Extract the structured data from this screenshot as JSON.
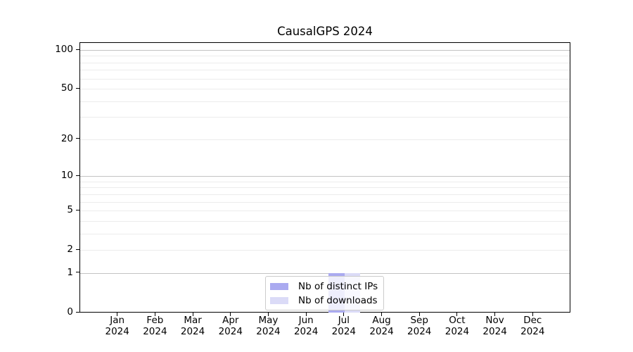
{
  "chart_data": {
    "type": "bar",
    "title": "CausalGPS 2024",
    "x": {
      "months": [
        "Jan",
        "Feb",
        "Mar",
        "Apr",
        "May",
        "Jun",
        "Jul",
        "Aug",
        "Sep",
        "Oct",
        "Nov",
        "Dec"
      ],
      "year_label": "2024"
    },
    "categories": [
      "Jan 2024",
      "Feb 2024",
      "Mar 2024",
      "Apr 2024",
      "May 2024",
      "Jun 2024",
      "Jul 2024",
      "Aug 2024",
      "Sep 2024",
      "Oct 2024",
      "Nov 2024",
      "Dec 2024"
    ],
    "series": [
      {
        "name": "Nb of distinct IPs",
        "color": "#aaaaf0",
        "values": [
          0,
          0,
          0,
          0,
          0,
          0,
          1,
          0,
          0,
          0,
          0,
          0
        ]
      },
      {
        "name": "Nb of downloads",
        "color": "#dbdbf7",
        "values": [
          0,
          0,
          0,
          0,
          0,
          0,
          1,
          0,
          0,
          0,
          0,
          0
        ]
      }
    ],
    "y_axis": {
      "scale": "log1p",
      "tick_values": [
        0,
        1,
        2,
        5,
        10,
        20,
        50,
        100
      ],
      "major_grid": [
        1,
        10,
        100
      ],
      "minor_grid": [
        2,
        3,
        4,
        5,
        6,
        7,
        8,
        9,
        20,
        30,
        40,
        50,
        60,
        70,
        80,
        90
      ],
      "ylim": [
        0,
        113
      ]
    },
    "legend": {
      "position": "lower center",
      "entries": [
        "Nb of distinct IPs",
        "Nb of downloads"
      ]
    },
    "colors": {
      "grid_major": "#c3c3c3",
      "grid_minor": "#ececec",
      "spine": "#000000",
      "background": "#ffffff"
    }
  }
}
